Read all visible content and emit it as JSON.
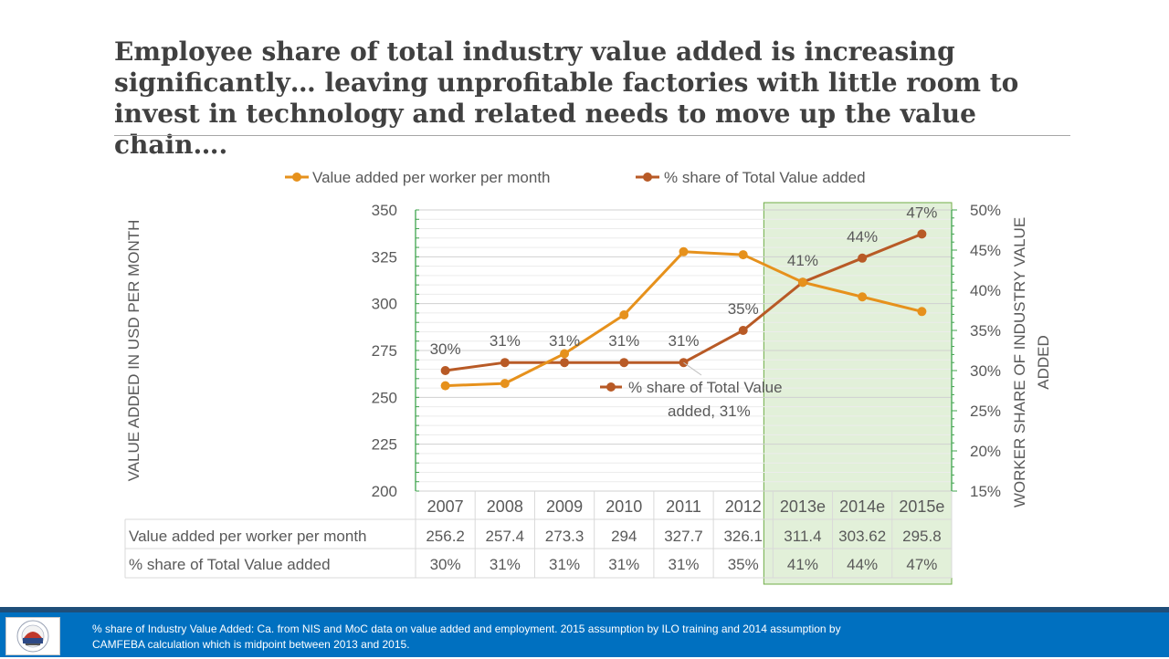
{
  "title": "Employee share of total industry value added is increasing significantly… leaving unprofitable factories with little room to invest in technology and related needs to move up the value chain….",
  "footnote": "% share of Industry Value Added:  Ca. from NIS and MoC data on value added and employment.  2015  assumption by ILO training and 2014 assumption by CAMFEBA calculation which is midpoint between 2013 and 2015.",
  "colors": {
    "value_added": "#e6911c",
    "share": "#b85a26",
    "highlight_fill": "#e2f0d9",
    "highlight_stroke": "#70ad47",
    "footer": "#0070c0"
  },
  "chart_data": {
    "type": "line",
    "categories": [
      "2007",
      "2008",
      "2009",
      "2010",
      "2011",
      "2012",
      "2013e",
      "2014e",
      "2015e"
    ],
    "series": [
      {
        "name": "Value added per  worker per month",
        "axis": "left",
        "values": [
          256.2,
          257.4,
          273.3,
          294,
          327.7,
          326.1,
          311.4,
          303.62,
          295.8
        ],
        "table_values": [
          "256.2",
          "257.4",
          "273.3",
          "294",
          "327.7",
          "326.1",
          "311.4",
          "303.62",
          "295.8"
        ]
      },
      {
        "name": "% share of Total Value added",
        "axis": "right",
        "values": [
          30,
          31,
          31,
          31,
          31,
          35,
          41,
          44,
          47
        ],
        "labels": [
          "30%",
          "31%",
          "31%",
          "31%",
          "31%",
          "35%",
          "41%",
          "44%",
          "47%"
        ]
      }
    ],
    "ylabel_left": "VALUE ADDED IN USD PER MONTH",
    "ylabel_right_lines": [
      "WORKER SHARE OF INDUSTRY VALUE",
      "ADDED"
    ],
    "ylim_left": [
      200,
      350
    ],
    "yticks_left": [
      "200",
      "225",
      "250",
      "275",
      "300",
      "325",
      "350"
    ],
    "ylim_right": [
      15,
      50
    ],
    "yticks_right": [
      "15%",
      "20%",
      "25%",
      "30%",
      "35%",
      "40%",
      "45%",
      "50%"
    ],
    "highlight_categories": [
      "2013e",
      "2014e",
      "2015e"
    ],
    "callout_lines": [
      "% share of Total Value",
      "added, 31%"
    ],
    "legend_position": "top",
    "data_table": true,
    "grid": true
  }
}
